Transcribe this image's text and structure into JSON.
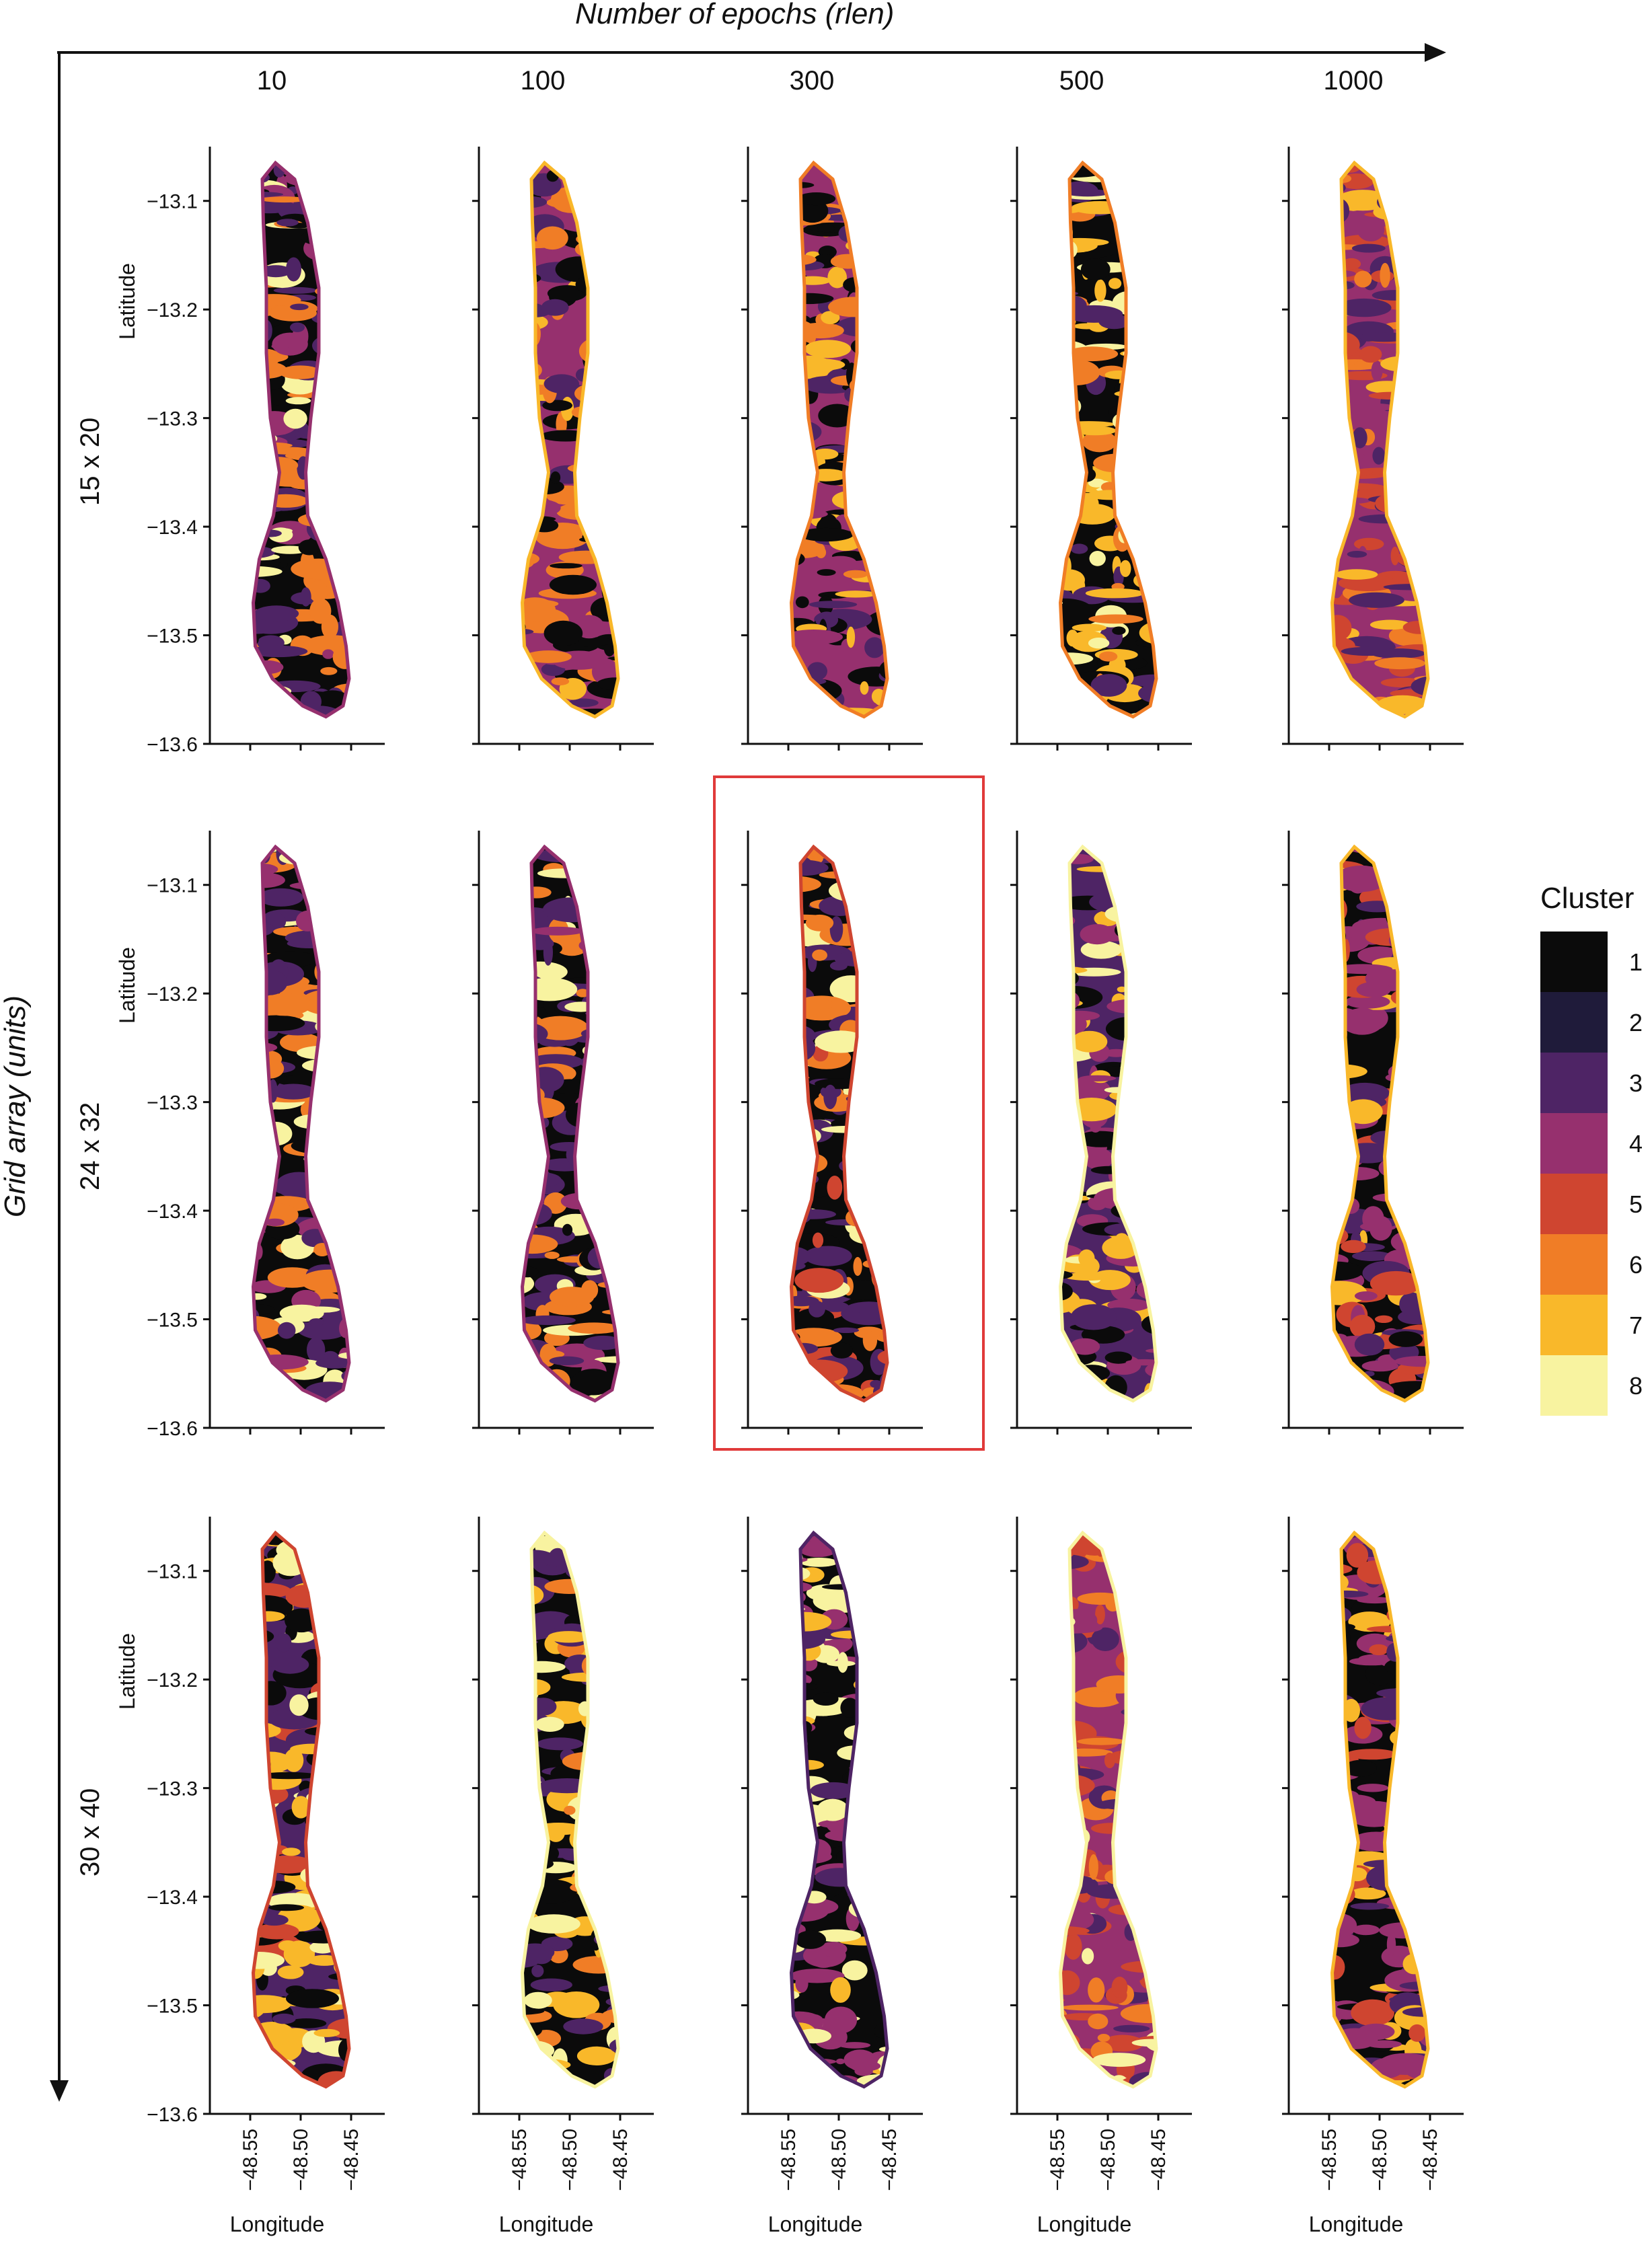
{
  "figure": {
    "top_axis_label": "Number of epochs (rlen)",
    "left_axis_label": "Grid array (units)",
    "column_labels": [
      "10",
      "100",
      "300",
      "500",
      "1000"
    ],
    "row_labels": [
      "15 x 20",
      "24 x 32",
      "30 x 40"
    ],
    "highlighted_panel": {
      "row": 1,
      "col": 2
    },
    "highlight_color": "#e03a3a"
  },
  "chart_data": {
    "type": "heatmap",
    "description_axes": {
      "xlabel": "Longitude",
      "ylabel": "Latitude"
    },
    "xlim": [
      -48.58,
      -48.42
    ],
    "ylim": [
      -13.6,
      -13.05
    ],
    "x_ticks": [
      -48.55,
      -48.5,
      -48.45
    ],
    "x_tick_labels": [
      "−48.55",
      "−48.50",
      "−48.45"
    ],
    "y_ticks": [
      -13.1,
      -13.2,
      -13.3,
      -13.4,
      -13.5,
      -13.6
    ],
    "y_tick_labels": [
      "−13.1",
      "−13.2",
      "−13.3",
      "−13.4",
      "−13.5",
      "−13.6"
    ],
    "legend": {
      "title": "Cluster",
      "position": "right",
      "entries": [
        {
          "label": "1",
          "color": "#0b0b0b"
        },
        {
          "label": "2",
          "color": "#1f1b3a"
        },
        {
          "label": "3",
          "color": "#4e2465"
        },
        {
          "label": "4",
          "color": "#96306e"
        },
        {
          "label": "5",
          "color": "#cf4530"
        },
        {
          "label": "6",
          "color": "#f07d26"
        },
        {
          "label": "7",
          "color": "#f9b82a"
        },
        {
          "label": "8",
          "color": "#f8f3a0"
        }
      ]
    },
    "panels_dominant_clusters": [
      [
        [
          1,
          3,
          6,
          8,
          4
        ],
        [
          4,
          1,
          6,
          3,
          7
        ],
        [
          4,
          1,
          3,
          7,
          6
        ],
        [
          1,
          7,
          8,
          3,
          6
        ],
        [
          4,
          5,
          3,
          6,
          7
        ]
      ],
      [
        [
          1,
          3,
          6,
          8,
          4
        ],
        [
          1,
          3,
          6,
          8,
          4
        ],
        [
          1,
          3,
          6,
          8,
          5
        ],
        [
          3,
          4,
          1,
          7,
          8
        ],
        [
          1,
          4,
          3,
          5,
          7
        ]
      ],
      [
        [
          3,
          1,
          7,
          8,
          5
        ],
        [
          1,
          3,
          7,
          6,
          8
        ],
        [
          1,
          4,
          8,
          7,
          3
        ],
        [
          4,
          5,
          3,
          6,
          8
        ],
        [
          1,
          4,
          3,
          5,
          7
        ]
      ]
    ]
  }
}
